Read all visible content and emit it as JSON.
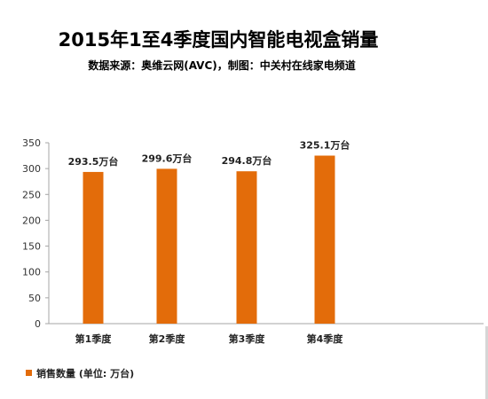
{
  "chart_data": {
    "type": "bar",
    "title": "2015年1至4季度国内智能电视盒销量",
    "subtitle": "数据来源：奥维云网(AVC)，制图：中关村在线家电频道",
    "categories": [
      "第1季度",
      "第2季度",
      "第3季度",
      "第4季度"
    ],
    "series": [
      {
        "name": "销售数量 (单位: 万台)",
        "values": [
          293.5,
          299.6,
          294.8,
          325.1
        ],
        "color": "#E36C0A"
      }
    ],
    "data_labels": [
      "293.5万台",
      "299.6万台",
      "294.8万台",
      "325.1万台"
    ],
    "xlabel": "",
    "ylabel": "",
    "ylim": [
      0,
      350
    ],
    "yticks": [
      0,
      50,
      100,
      150,
      200,
      250,
      300,
      350
    ],
    "grid": false,
    "legend_position": "bottom-left"
  }
}
